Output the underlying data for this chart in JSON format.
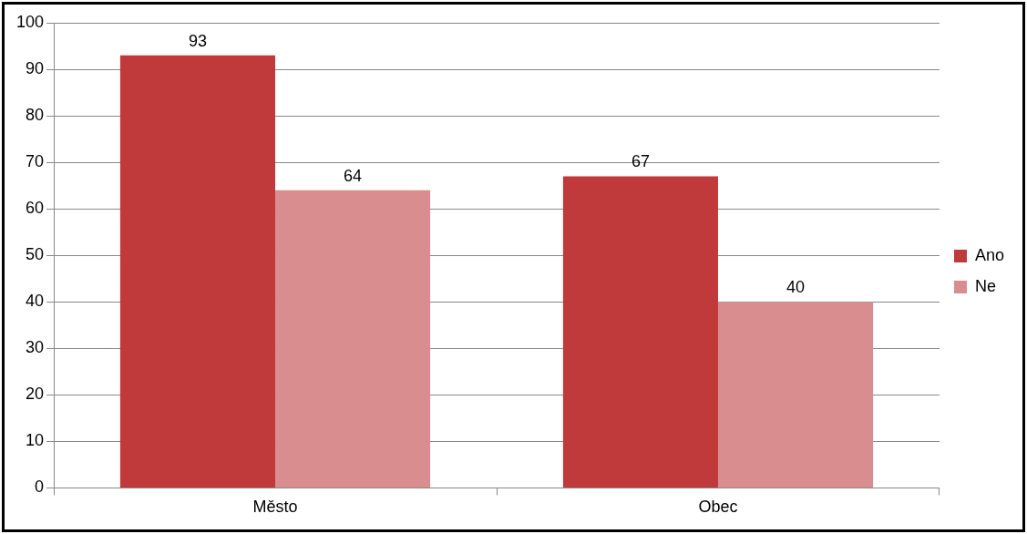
{
  "chart_data": {
    "type": "bar",
    "categories": [
      "Město",
      "Obec"
    ],
    "series": [
      {
        "name": "Ano",
        "color": "#c0393b",
        "values": [
          93,
          67
        ]
      },
      {
        "name": "Ne",
        "color": "#d98d8f",
        "values": [
          64,
          40
        ]
      }
    ],
    "ylim": [
      0,
      100
    ],
    "yticks": [
      0,
      10,
      20,
      30,
      40,
      50,
      60,
      70,
      80,
      90,
      100
    ],
    "grid": "y",
    "legend": "right",
    "data_labels": true
  }
}
